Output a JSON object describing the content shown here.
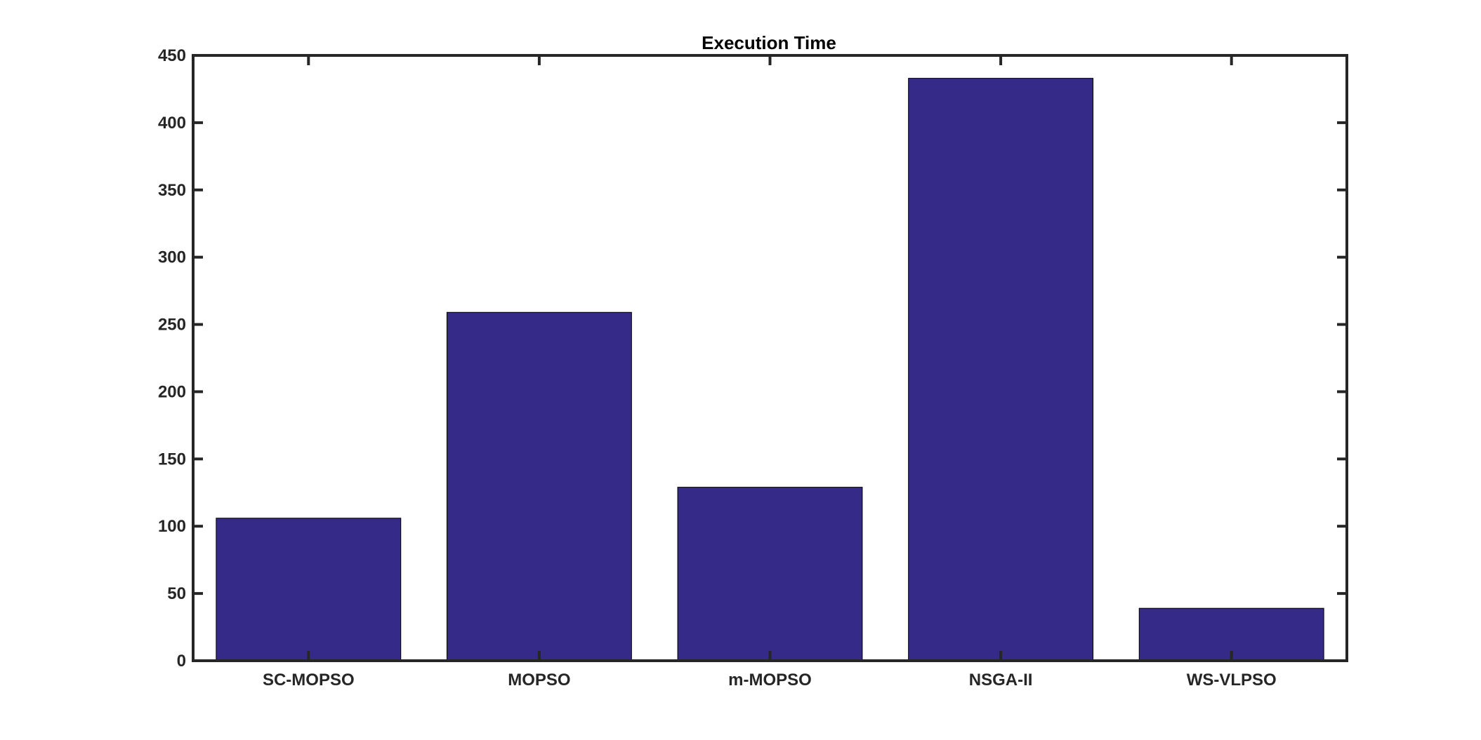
{
  "chart_data": {
    "type": "bar",
    "title": "Execution Time",
    "xlabel": "",
    "ylabel": "",
    "categories": [
      "SC-MOPSO",
      "MOPSO",
      "m-MOPSO",
      "NSGA-II",
      "WS-VLPSO"
    ],
    "values": [
      106,
      259,
      129,
      433,
      39
    ],
    "ylim": [
      0,
      450
    ],
    "yticks": [
      "0",
      "50",
      "100",
      "150",
      "200",
      "250",
      "300",
      "350",
      "400",
      "450"
    ],
    "grid": false,
    "legend": "none",
    "colors": {
      "bar": "#352a87",
      "bar_edge": "#000000",
      "axis": "#262626"
    }
  }
}
